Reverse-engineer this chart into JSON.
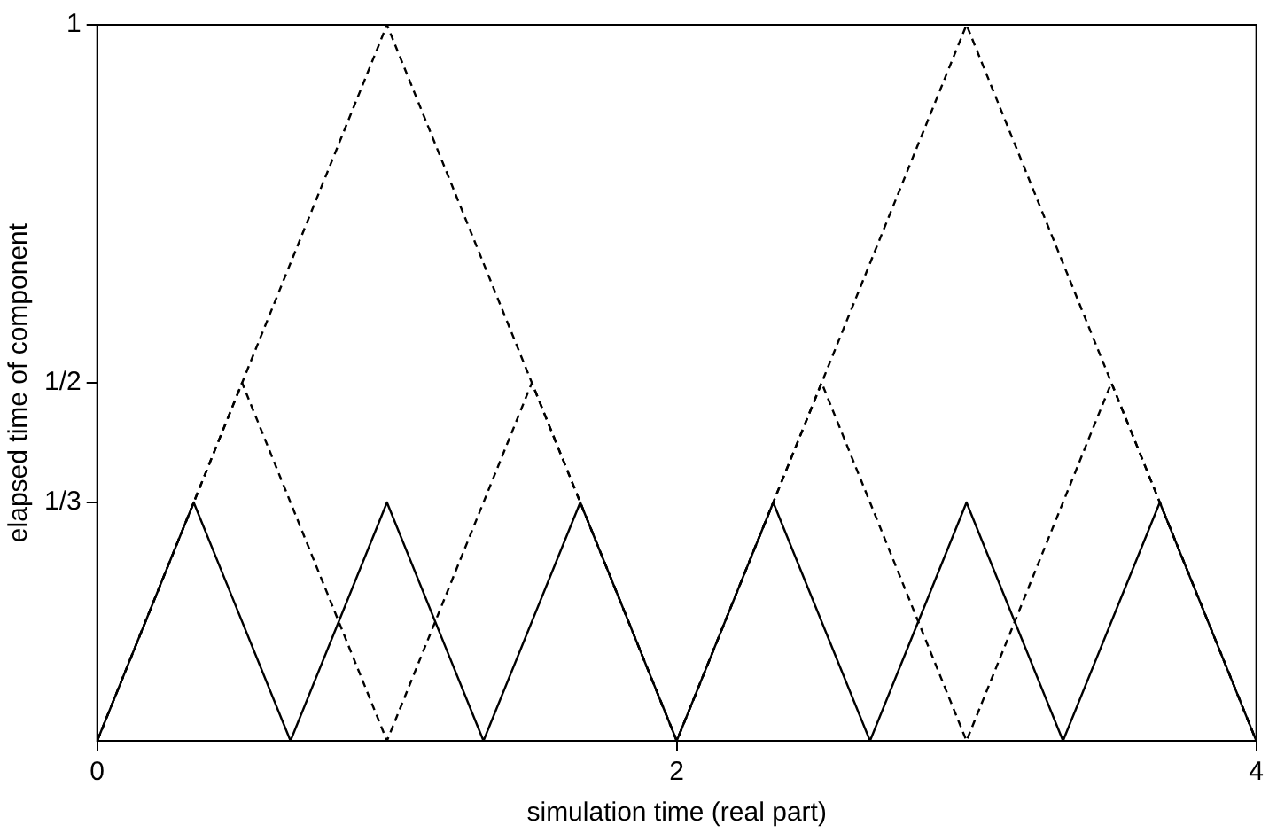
{
  "chart_data": {
    "type": "line",
    "xlabel": "simulation time (real part)",
    "ylabel": "elapsed time of component",
    "xlim": [
      0,
      4
    ],
    "xticks": [
      0,
      2,
      4
    ],
    "ylim": [
      0,
      1
    ],
    "yticks": [
      {
        "value": 0.333,
        "label": "1/3"
      },
      {
        "value": 0.5,
        "label": "1/2"
      },
      {
        "value": 1,
        "label": "1"
      }
    ],
    "grid": false,
    "legend": false,
    "marker": "none",
    "series": [
      {
        "color": "#000000",
        "line_style": "dashed",
        "x": [
          0,
          1,
          2,
          3,
          4
        ],
        "values": [
          0,
          1,
          0,
          1,
          0
        ]
      },
      {
        "color": "#000000",
        "line_style": "dashed",
        "x": [
          0,
          0.5,
          1,
          1.5,
          2,
          2.5,
          3,
          3.5,
          4
        ],
        "values": [
          0,
          0.5,
          0,
          0.5,
          0,
          0.5,
          0,
          0.5,
          0
        ]
      },
      {
        "color": "#000000",
        "line_style": "solid",
        "x": [
          0,
          0.333,
          0.667,
          1,
          1.333,
          1.667,
          2,
          2.333,
          2.667,
          3,
          3.333,
          3.667,
          4
        ],
        "values": [
          0,
          0.333,
          0,
          0.333,
          0,
          0.333,
          0,
          0.333,
          0,
          0.333,
          0,
          0.333,
          0
        ]
      }
    ]
  }
}
